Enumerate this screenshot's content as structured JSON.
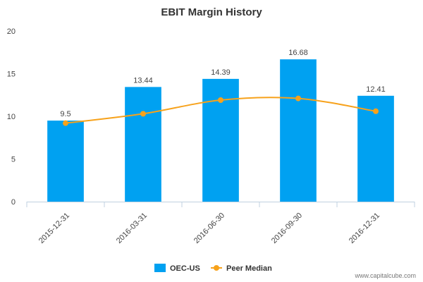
{
  "chart_data": {
    "type": "bar",
    "title": "EBIT Margin History",
    "categories": [
      "2015-12-31",
      "2016-03-31",
      "2016-06-30",
      "2016-09-30",
      "2016-12-31"
    ],
    "series": [
      {
        "name": "OEC-US",
        "kind": "bar",
        "values": [
          9.5,
          13.44,
          14.39,
          16.68,
          12.41
        ],
        "color": "#00a1f1",
        "data_labels": true
      },
      {
        "name": "Peer Median",
        "kind": "line",
        "values": [
          9.2,
          10.3,
          11.9,
          12.1,
          10.6
        ],
        "color": "#f7a21b",
        "data_labels": false
      }
    ],
    "ylim": [
      0,
      20
    ],
    "yticks": [
      0,
      5,
      10,
      15,
      20
    ],
    "grid": false,
    "legend_position": "bottom-center"
  },
  "credit": "www.capitalcube.com"
}
